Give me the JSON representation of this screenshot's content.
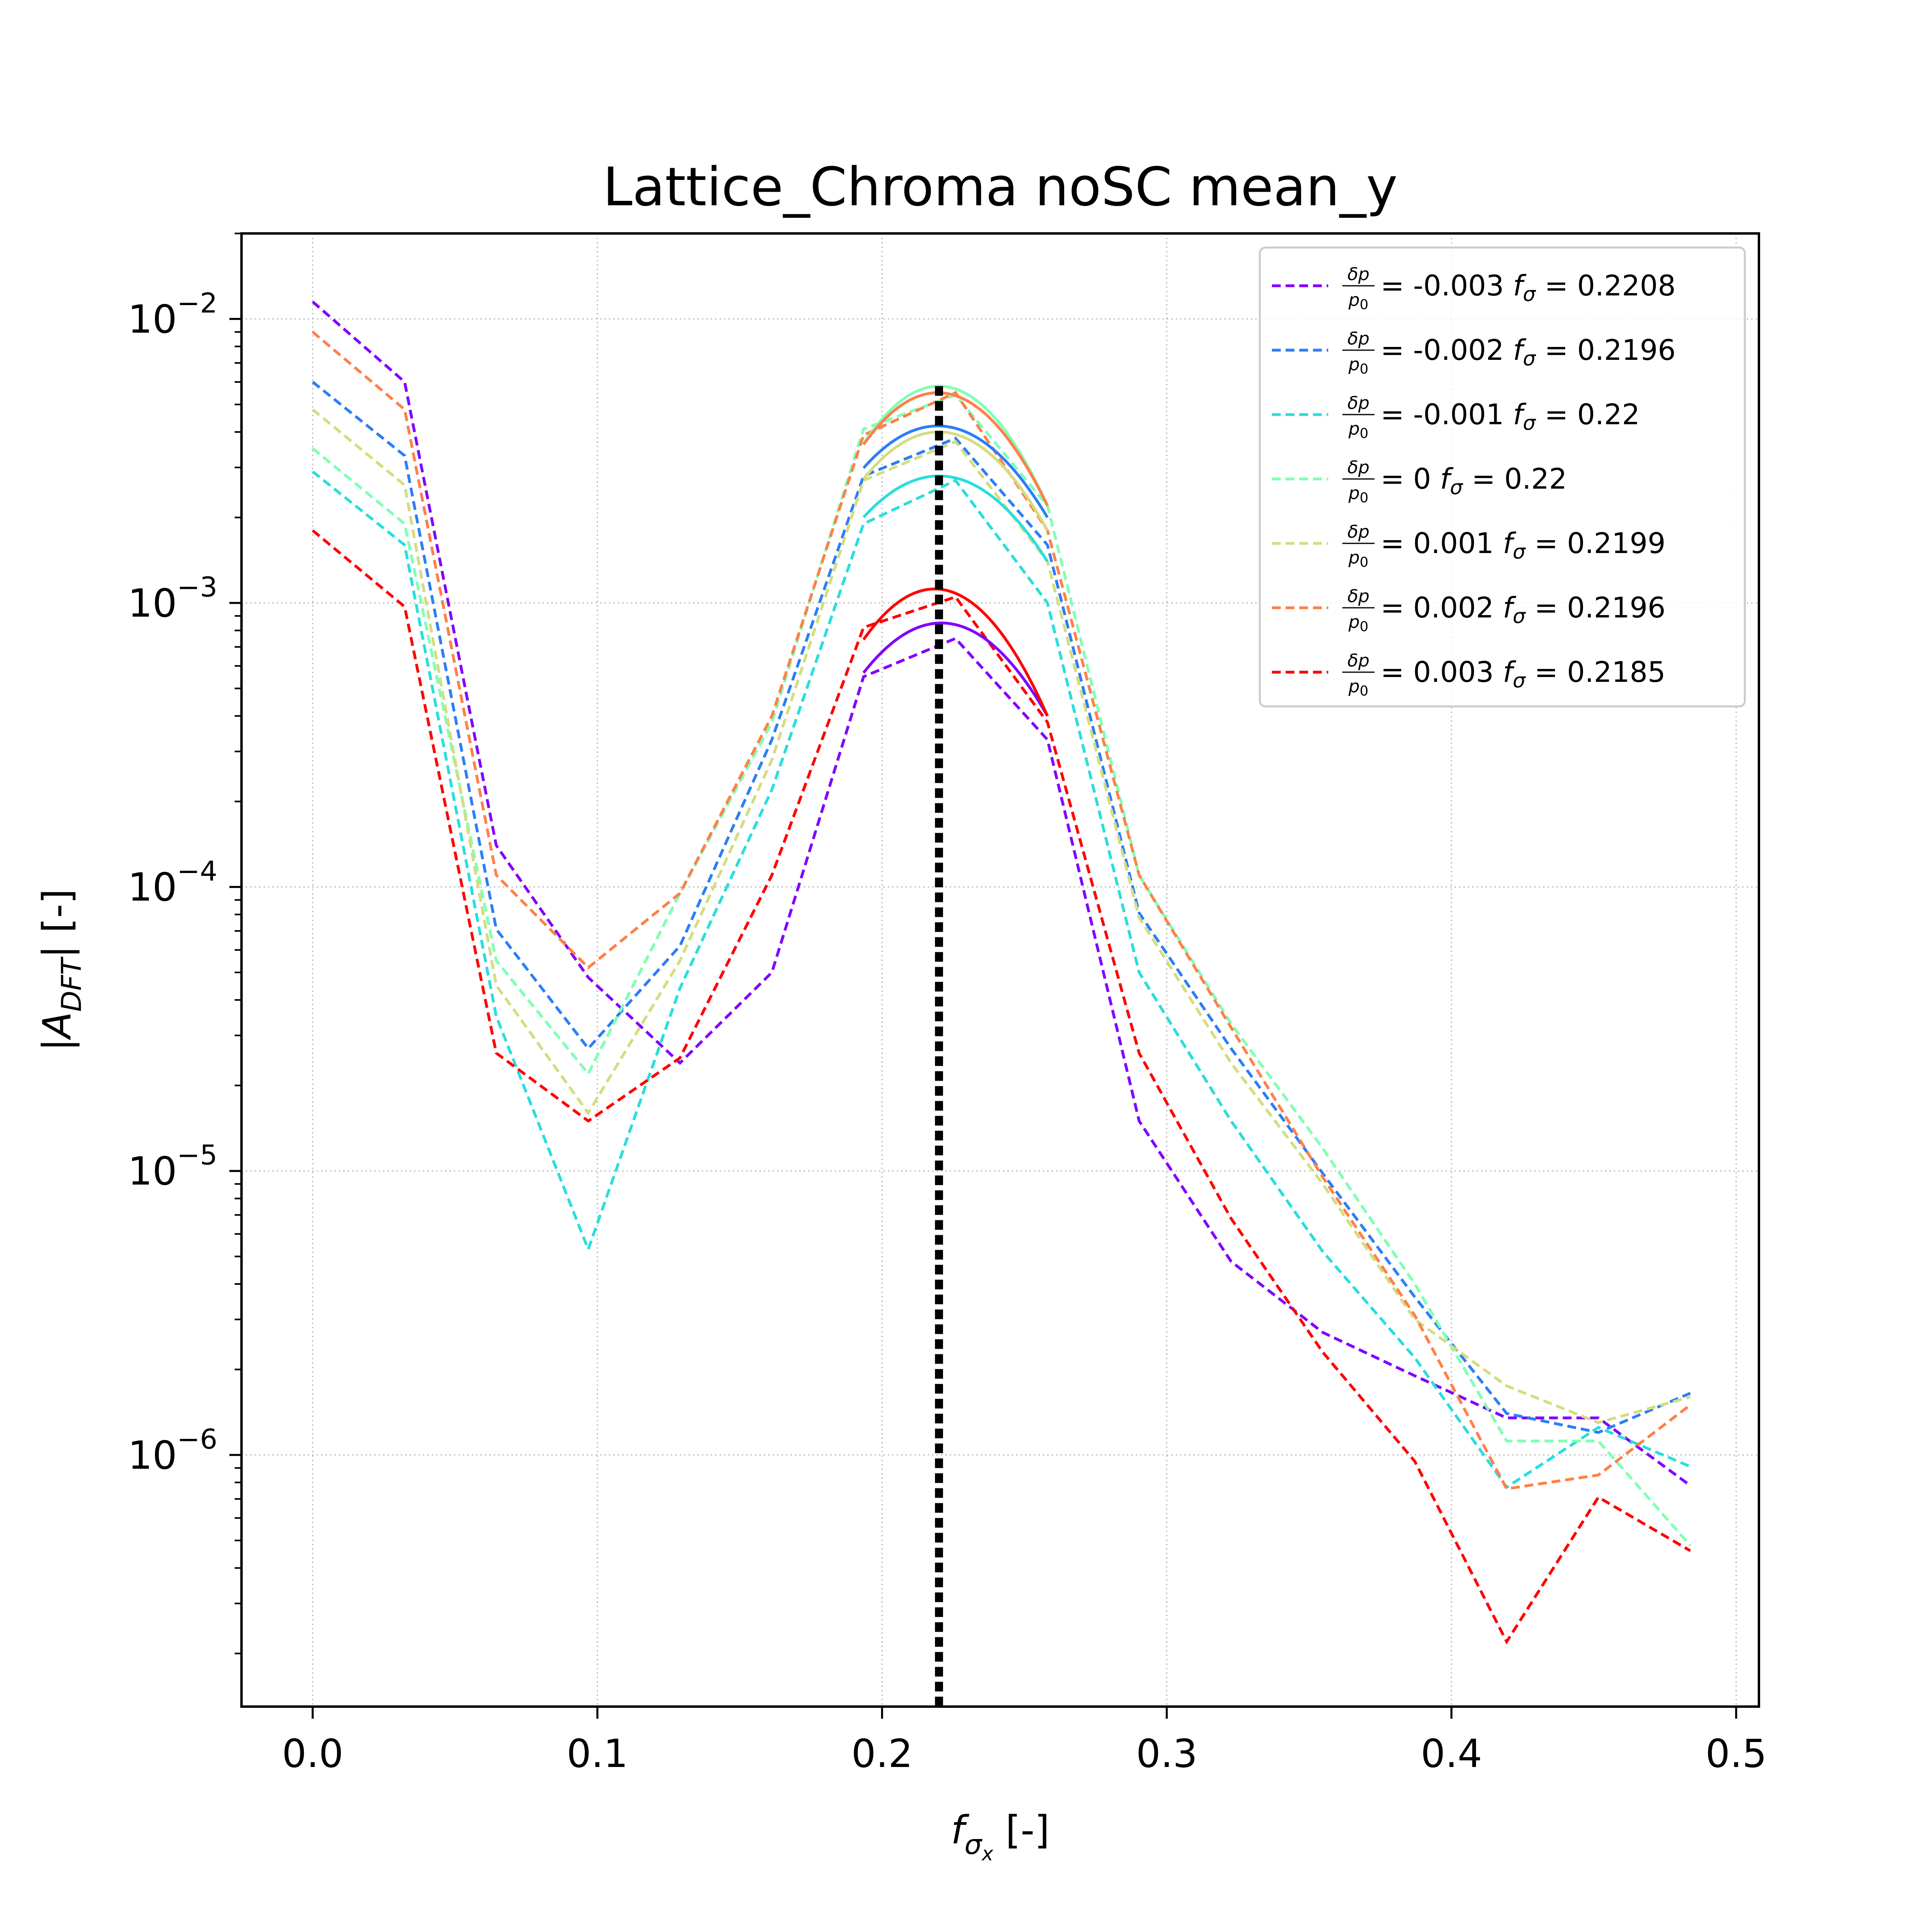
{
  "chart_data": {
    "type": "line",
    "title": "Lattice_Chroma noSC mean_y",
    "xlabel": "f_σx [-]",
    "ylabel": "|A_DFT| [-]",
    "xscale": "linear",
    "yscale": "log",
    "xlim": [
      -0.025,
      0.508
    ],
    "ylim": [
      1.3e-07,
      0.02
    ],
    "xticks": [
      0.0,
      0.1,
      0.2,
      0.3,
      0.4,
      0.5
    ],
    "xtick_labels": [
      "0.0",
      "0.1",
      "0.2",
      "0.3",
      "0.4",
      "0.5"
    ],
    "yticks": [
      1e-06,
      1e-05,
      0.0001,
      0.001,
      0.01
    ],
    "ytick_labels": [
      {
        "base": "10",
        "exp": "−6"
      },
      {
        "base": "10",
        "exp": "−5"
      },
      {
        "base": "10",
        "exp": "−4"
      },
      {
        "base": "10",
        "exp": "−3"
      },
      {
        "base": "10",
        "exp": "−2"
      }
    ],
    "grid": true,
    "legend_placement": "upper right",
    "vertical_line": {
      "x": 0.22,
      "style": "dashed",
      "color": "#000000"
    },
    "x": [
      0.0,
      0.0323,
      0.0645,
      0.0968,
      0.129,
      0.1613,
      0.1935,
      0.2258,
      0.2581,
      0.2903,
      0.3226,
      0.3548,
      0.3871,
      0.4194,
      0.4516,
      0.4839
    ],
    "series": [
      {
        "dp_label": "-0.003",
        "f_label": "0.2208",
        "color": "#8000ff",
        "values": [
          0.0115,
          0.006,
          0.00014,
          4.8e-05,
          2.4e-05,
          5e-05,
          0.00055,
          0.00075,
          0.00033,
          1.5e-05,
          4.8e-06,
          2.7e-06,
          1.9e-06,
          1.35e-06,
          1.35e-06,
          7.8e-07
        ],
        "fit": {
          "from": 0.1935,
          "to": 0.2581,
          "peak_x": 0.2208,
          "peak_y": 0.00085,
          "end_y": 0.0004
        }
      },
      {
        "dp_label": "-0.002",
        "f_label": "0.2196",
        "color": "#2c7ef7",
        "values": [
          0.006,
          0.0033,
          7.1e-05,
          2.7e-05,
          6.2e-05,
          0.00033,
          0.0028,
          0.0038,
          0.0016,
          8.1e-05,
          2.7e-05,
          9.8e-06,
          3.6e-06,
          1.4e-06,
          1.2e-06,
          1.65e-06
        ],
        "fit": {
          "from": 0.1935,
          "to": 0.2581,
          "peak_x": 0.2196,
          "peak_y": 0.0042,
          "end_y": 0.002
        }
      },
      {
        "dp_label": "-0.001",
        "f_label": "0.22",
        "color": "#2adddd",
        "values": [
          0.0029,
          0.0016,
          3.5e-05,
          5.3e-06,
          4.4e-05,
          0.00022,
          0.0019,
          0.0027,
          0.001,
          5e-05,
          1.5e-05,
          5.2e-06,
          2.2e-06,
          7.7e-07,
          1.25e-06,
          9.1e-07
        ],
        "fit": {
          "from": 0.1935,
          "to": 0.2581,
          "peak_x": 0.22,
          "peak_y": 0.0028,
          "end_y": 0.0014
        }
      },
      {
        "dp_label": "0",
        "f_label": "0.22",
        "color": "#80ffb4",
        "values": [
          0.0035,
          0.0019,
          5.5e-05,
          2.2e-05,
          9.5e-05,
          0.00038,
          0.0041,
          0.0054,
          0.0022,
          0.00011,
          3.3e-05,
          1.2e-05,
          4e-06,
          1.12e-06,
          1.12e-06,
          4.8e-07
        ],
        "fit": {
          "from": 0.1935,
          "to": 0.2581,
          "peak_x": 0.22,
          "peak_y": 0.0058,
          "end_y": 0.0022
        }
      },
      {
        "dp_label": "0.001",
        "f_label": "0.2199",
        "color": "#d4dd80",
        "values": [
          0.0048,
          0.0026,
          4.5e-05,
          1.6e-05,
          5.5e-05,
          0.00028,
          0.0027,
          0.0037,
          0.0014,
          7.8e-05,
          2.4e-05,
          9e-06,
          3e-06,
          1.75e-06,
          1.3e-06,
          1.6e-06
        ],
        "fit": {
          "from": 0.1935,
          "to": 0.2581,
          "peak_x": 0.2199,
          "peak_y": 0.004,
          "end_y": 0.0018
        }
      },
      {
        "dp_label": "0.002",
        "f_label": "0.2196",
        "color": "#ff8048",
        "values": [
          0.009,
          0.0048,
          0.00011,
          5.2e-05,
          9.5e-05,
          0.0004,
          0.0039,
          0.0055,
          0.0018,
          0.00011,
          3.2e-05,
          9.5e-06,
          3.1e-06,
          7.6e-07,
          8.5e-07,
          1.5e-06
        ],
        "fit": {
          "from": 0.1935,
          "to": 0.2581,
          "peak_x": 0.2196,
          "peak_y": 0.0055,
          "end_y": 0.0022
        }
      },
      {
        "dp_label": "0.003",
        "f_label": "0.2185",
        "color": "#ff0000",
        "values": [
          0.0018,
          0.00097,
          2.6e-05,
          1.5e-05,
          2.5e-05,
          0.00011,
          0.00082,
          0.00105,
          0.00038,
          2.6e-05,
          6.8e-06,
          2.3e-06,
          9.5e-07,
          2.2e-07,
          7.1e-07,
          4.6e-07
        ],
        "fit": {
          "from": 0.1935,
          "to": 0.2581,
          "peak_x": 0.2185,
          "peak_y": 0.00112,
          "end_y": 0.0004
        }
      }
    ]
  }
}
